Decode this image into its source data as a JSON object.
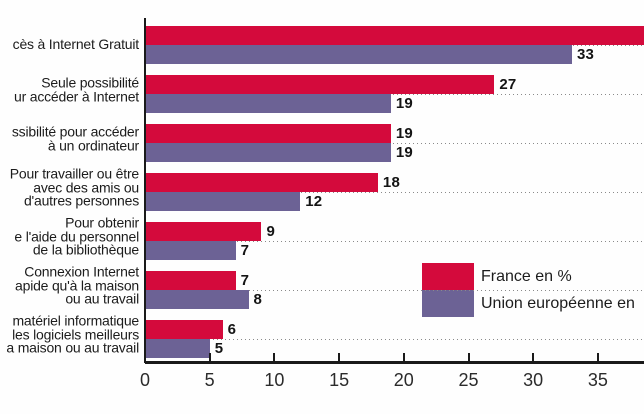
{
  "chart_data": {
    "type": "bar",
    "orientation": "horizontal",
    "categories": [
      [
        "cès à Internet Gratuit"
      ],
      [
        "Seule possibilité",
        "ur accéder à Internet"
      ],
      [
        "ssibilité pour accéder",
        "à un ordinateur"
      ],
      [
        "Pour travailler ou être",
        "avec des amis ou",
        "d'autres personnes"
      ],
      [
        "Pour obtenir",
        "e l'aide du personnel",
        "de la bibliothèque"
      ],
      [
        "Connexion Internet",
        "apide qu'à la maison",
        "ou au travail"
      ],
      [
        "matériel informatique",
        "les logiciels meilleurs",
        "a maison ou au travail"
      ]
    ],
    "categories_note": "category labels are truncated at the left edge of the image",
    "series": [
      {
        "name": "France en %",
        "color": "#d40a3c",
        "values": [
          null,
          27,
          19,
          18,
          9,
          7,
          6
        ],
        "note": "first bar extends beyond the right image edge; its value is not visible"
      },
      {
        "name": "Union européenne en",
        "color": "#6c6295",
        "values": [
          33,
          19,
          19,
          12,
          7,
          8,
          5
        ],
        "note": "legend text truncated at the right image edge"
      }
    ],
    "x_axis": {
      "ticks": [
        0,
        5,
        10,
        15,
        20,
        25,
        30,
        35
      ],
      "visible_range": [
        0,
        38.5
      ]
    },
    "grid": "dotted horizontal line at each category midline, drawn behind the bars",
    "legend_position": "bottom-right"
  },
  "colors": {
    "axis": "#1a1a1a",
    "grid_dots": "#8a8a8a",
    "value_text": "#141414",
    "label_text": "#1c1c1c"
  }
}
